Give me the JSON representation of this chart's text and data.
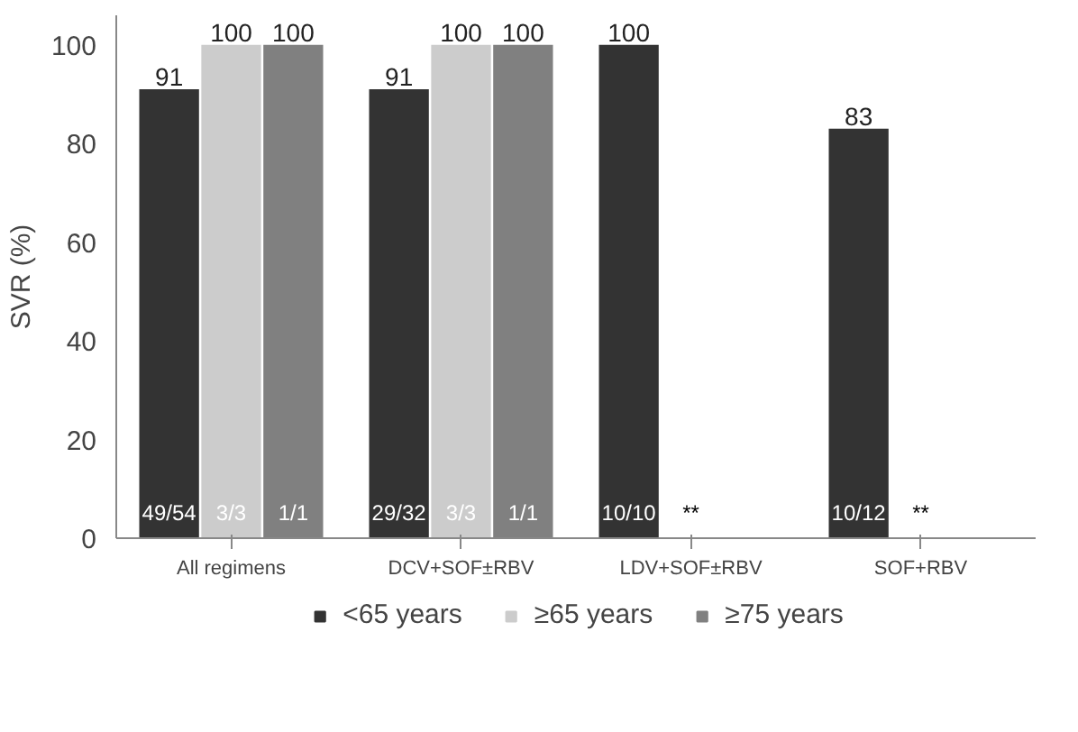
{
  "chart_data": {
    "type": "bar",
    "ylabel": "SVR (%)",
    "categories": [
      "All regimens",
      "DCV+SOF±RBV",
      "LDV+SOF±RBV",
      "SOF+RBV"
    ],
    "series": [
      {
        "name": "<65 years",
        "color": "#333333",
        "values": [
          91,
          91,
          100,
          83
        ]
      },
      {
        "name": "≥65 years",
        "color": "#cccccc",
        "values": [
          100,
          100,
          null,
          null
        ]
      },
      {
        "name": "≥75 years",
        "color": "#808080",
        "values": [
          100,
          100,
          null,
          null
        ]
      }
    ],
    "ylim": [
      0,
      106
    ],
    "yticks": [
      0,
      20,
      40,
      60,
      80,
      100
    ],
    "data_labels": true,
    "legend": "bottom",
    "grid": false,
    "annotations": [
      "49/54",
      "3/3",
      "1/1",
      "29/32",
      "3/3",
      "1/1",
      "10/10",
      "**",
      "10/12",
      "**"
    ]
  }
}
